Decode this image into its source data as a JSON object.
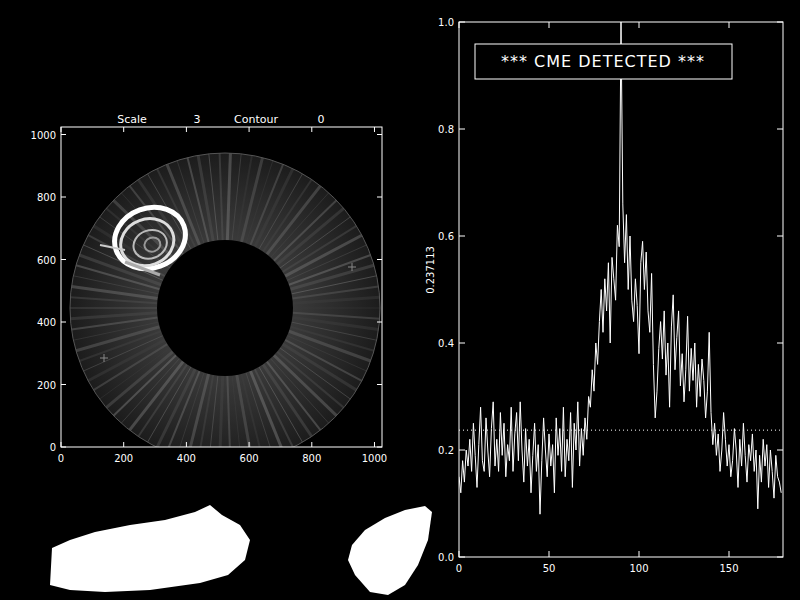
{
  "chart_data": [
    {
      "type": "image",
      "title": "Scale 3 Contour 0",
      "xlim": [
        0,
        1024
      ],
      "ylim": [
        0,
        1024
      ],
      "xticks": [
        0,
        200,
        400,
        600,
        800,
        1000
      ],
      "yticks": [
        0,
        200,
        400,
        600,
        800,
        1000
      ]
    },
    {
      "type": "line",
      "annotation": "*** CME DETECTED ***",
      "ylabel": "0.237113",
      "threshold": 0.237113,
      "color": "#ffffff",
      "line_style": "solid",
      "xlim": [
        0,
        180
      ],
      "ylim": [
        0,
        1
      ],
      "xticks": [
        0,
        50,
        100,
        150
      ],
      "yticks": [
        {
          "value": 0,
          "label": "0.0"
        },
        {
          "value": 0.2,
          "label": "0.2"
        },
        {
          "value": 0.4,
          "label": "0.4"
        },
        {
          "value": 0.6,
          "label": "0.6"
        },
        {
          "value": 0.8,
          "label": "0.8"
        },
        {
          "value": 1,
          "label": "1.0"
        }
      ],
      "x": [
        0,
        1,
        2,
        3,
        4,
        5,
        6,
        7,
        8,
        9,
        10,
        11,
        12,
        13,
        14,
        15,
        16,
        17,
        18,
        19,
        20,
        21,
        22,
        23,
        24,
        25,
        26,
        27,
        28,
        29,
        30,
        31,
        32,
        33,
        34,
        35,
        36,
        37,
        38,
        39,
        40,
        41,
        42,
        43,
        44,
        45,
        46,
        47,
        48,
        49,
        50,
        51,
        52,
        53,
        54,
        55,
        56,
        57,
        58,
        59,
        60,
        61,
        62,
        63,
        64,
        65,
        66,
        67,
        68,
        69,
        70,
        71,
        72,
        73,
        74,
        75,
        76,
        77,
        78,
        79,
        80,
        81,
        82,
        83,
        84,
        85,
        86,
        87,
        88,
        89,
        90,
        91,
        92,
        93,
        94,
        95,
        96,
        97,
        98,
        99,
        100,
        101,
        102,
        103,
        104,
        105,
        106,
        107,
        108,
        109,
        110,
        111,
        112,
        113,
        114,
        115,
        116,
        117,
        118,
        119,
        120,
        121,
        122,
        123,
        124,
        125,
        126,
        127,
        128,
        129,
        130,
        131,
        132,
        133,
        134,
        135,
        136,
        137,
        138,
        139,
        140,
        141,
        142,
        143,
        144,
        145,
        146,
        147,
        148,
        149,
        150,
        151,
        152,
        153,
        154,
        155,
        156,
        157,
        158,
        159,
        160,
        161,
        162,
        163,
        164,
        165,
        166,
        167,
        168,
        169,
        170,
        171,
        172,
        173,
        174,
        175,
        176,
        177,
        178,
        179
      ],
      "values": [
        0.15,
        0.12,
        0.18,
        0.14,
        0.2,
        0.17,
        0.22,
        0.16,
        0.25,
        0.19,
        0.13,
        0.21,
        0.28,
        0.18,
        0.16,
        0.26,
        0.2,
        0.15,
        0.24,
        0.29,
        0.17,
        0.22,
        0.16,
        0.27,
        0.19,
        0.25,
        0.15,
        0.21,
        0.18,
        0.28,
        0.16,
        0.23,
        0.27,
        0.18,
        0.29,
        0.2,
        0.14,
        0.24,
        0.17,
        0.22,
        0.12,
        0.19,
        0.25,
        0.16,
        0.21,
        0.08,
        0.18,
        0.26,
        0.2,
        0.15,
        0.23,
        0.17,
        0.21,
        0.12,
        0.26,
        0.19,
        0.24,
        0.16,
        0.28,
        0.15,
        0.22,
        0.18,
        0.27,
        0.13,
        0.25,
        0.2,
        0.29,
        0.17,
        0.24,
        0.19,
        0.26,
        0.22,
        0.3,
        0.28,
        0.35,
        0.31,
        0.4,
        0.36,
        0.44,
        0.5,
        0.42,
        0.52,
        0.46,
        0.55,
        0.4,
        0.56,
        0.52,
        0.48,
        0.62,
        0.58,
        1.0,
        0.66,
        0.55,
        0.64,
        0.5,
        0.6,
        0.48,
        0.44,
        0.52,
        0.47,
        0.38,
        0.55,
        0.59,
        0.5,
        0.57,
        0.46,
        0.42,
        0.53,
        0.36,
        0.26,
        0.31,
        0.39,
        0.44,
        0.37,
        0.46,
        0.34,
        0.4,
        0.28,
        0.43,
        0.49,
        0.35,
        0.41,
        0.46,
        0.32,
        0.38,
        0.29,
        0.35,
        0.45,
        0.31,
        0.39,
        0.33,
        0.4,
        0.28,
        0.36,
        0.3,
        0.37,
        0.33,
        0.26,
        0.31,
        0.42,
        0.27,
        0.21,
        0.25,
        0.19,
        0.23,
        0.16,
        0.2,
        0.27,
        0.22,
        0.17,
        0.21,
        0.15,
        0.18,
        0.24,
        0.2,
        0.13,
        0.22,
        0.17,
        0.25,
        0.19,
        0.14,
        0.21,
        0.18,
        0.23,
        0.16,
        0.2,
        0.09,
        0.19,
        0.14,
        0.22,
        0.17,
        0.21,
        0.13,
        0.2,
        0.16,
        0.11,
        0.19,
        0.15,
        0.14,
        0.12
      ]
    }
  ]
}
